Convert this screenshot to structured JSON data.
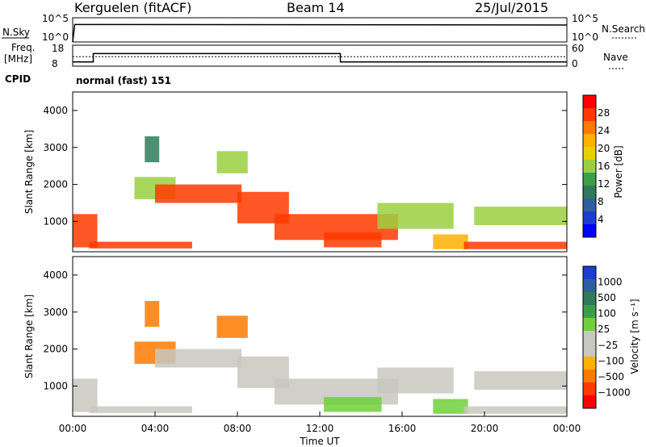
{
  "header": {
    "station": "Kerguelen (fitACF)",
    "beam": "Beam 14",
    "date": "25/Jul/2015"
  },
  "summary": {
    "nsky_label": "N.Sky",
    "nsearch_label": "N.Search",
    "freq_label_1": "Freq.",
    "freq_label_2": "[MHz]",
    "nave_label": "Nave",
    "cpid_label": "CPID",
    "cpid_value": "normal (fast) 151",
    "noise_ticks_left": [
      "10^5",
      "10^0"
    ],
    "noise_ticks_right": [
      "10^5",
      "10^0"
    ],
    "freq_ticks": [
      "18",
      "8"
    ],
    "nave_ticks": [
      "60",
      "0"
    ]
  },
  "power_panel": {
    "ylabel": "Slant Range [km]",
    "yticks": [
      "4000",
      "3000",
      "2000",
      "1000"
    ],
    "colorbar_label": "Power [dB]",
    "colorbar_ticks": [
      "28",
      "24",
      "20",
      "16",
      "12",
      "8",
      "4"
    ],
    "colorbar_colors": [
      "#ff0000",
      "#ff3a00",
      "#ff7a00",
      "#ffb000",
      "#e6d000",
      "#9ad040",
      "#3aa048",
      "#2f7a5a",
      "#2f5fa0",
      "#1e3cd0",
      "#0000ff"
    ]
  },
  "velocity_panel": {
    "ylabel": "Slant Range [km]",
    "yticks": [
      "4000",
      "3000",
      "2000",
      "1000"
    ],
    "colorbar_label": "Velocity [m s⁻¹]",
    "colorbar_ticks": [
      "1000",
      "500",
      "100",
      "25",
      "−25",
      "−100",
      "−500",
      "−1000"
    ],
    "colorbar_colors": [
      "#1e3cd0",
      "#2f5fa0",
      "#2f7a5a",
      "#3aa048",
      "#6fd03a",
      "#c8c8c0",
      "#c8c8c0",
      "#ffb000",
      "#ff7a00",
      "#ff3a00",
      "#ff0000"
    ]
  },
  "xaxis": {
    "label": "Time UT",
    "ticks": [
      "00:00",
      "04:00",
      "08:00",
      "12:00",
      "16:00",
      "20:00",
      "00:00"
    ]
  },
  "chart_data": [
    {
      "type": "line",
      "title": "N.Sky / N.Search",
      "x_hours": [
        0,
        24
      ],
      "ylim_log10": [
        0,
        5
      ],
      "series": [
        {
          "name": "N.Sky",
          "x": [
            0,
            0.1,
            24
          ],
          "values_log10": [
            0,
            3.6,
            3.5
          ]
        },
        {
          "name": "N.Search",
          "x": [
            0,
            24
          ],
          "values_log10": [
            0,
            0
          ]
        }
      ]
    },
    {
      "type": "line",
      "title": "Freq. / Nave",
      "x": [
        0,
        1,
        1,
        13,
        13,
        24
      ],
      "series": [
        {
          "name": "Freq. [MHz]",
          "values": [
            10,
            10,
            14,
            14,
            10,
            10
          ],
          "ylim": [
            8,
            18
          ]
        },
        {
          "name": "Nave",
          "values": [
            27,
            27,
            27,
            27,
            27,
            27
          ],
          "ylim": [
            0,
            60
          ]
        }
      ]
    },
    {
      "type": "heatmap",
      "title": "Power [dB]",
      "x_range_hours": [
        0,
        24
      ],
      "y_range_km": [
        180,
        4500
      ],
      "zlim": [
        0,
        30
      ],
      "echo_bands": [
        {
          "t0": 0,
          "t1": 1.2,
          "r0": 300,
          "r1": 1200,
          "peak": 26
        },
        {
          "t0": 0.8,
          "t1": 5.8,
          "r0": 270,
          "r1": 450,
          "peak": 26
        },
        {
          "t0": 3.5,
          "t1": 4.2,
          "r0": 2600,
          "r1": 3300,
          "peak": 8
        },
        {
          "t0": 3.0,
          "t1": 5.0,
          "r0": 1600,
          "r1": 2200,
          "peak": 14
        },
        {
          "t0": 4.0,
          "t1": 8.2,
          "r0": 1500,
          "r1": 2000,
          "peak": 26
        },
        {
          "t0": 8.0,
          "t1": 10.5,
          "r0": 950,
          "r1": 1800,
          "peak": 26
        },
        {
          "t0": 7.0,
          "t1": 8.5,
          "r0": 2300,
          "r1": 2900,
          "peak": 16
        },
        {
          "t0": 9.8,
          "t1": 15.8,
          "r0": 500,
          "r1": 1200,
          "peak": 26
        },
        {
          "t0": 12.2,
          "t1": 15.0,
          "r0": 300,
          "r1": 700,
          "peak": 26
        },
        {
          "t0": 14.8,
          "t1": 18.5,
          "r0": 800,
          "r1": 1500,
          "peak": 14
        },
        {
          "t0": 17.5,
          "t1": 19.2,
          "r0": 250,
          "r1": 650,
          "peak": 22
        },
        {
          "t0": 19.5,
          "t1": 24.0,
          "r0": 900,
          "r1": 1400,
          "peak": 14
        },
        {
          "t0": 19.0,
          "t1": 24.0,
          "r0": 250,
          "r1": 450,
          "peak": 26
        }
      ]
    },
    {
      "type": "heatmap",
      "title": "Velocity [m s⁻¹]",
      "x_range_hours": [
        0,
        24
      ],
      "y_range_km": [
        180,
        4500
      ],
      "zlim": [
        -1000,
        1000
      ],
      "echo_bands": [
        {
          "t0": 0,
          "t1": 1.2,
          "r0": 300,
          "r1": 1200,
          "v": 0
        },
        {
          "t0": 0.8,
          "t1": 5.8,
          "r0": 270,
          "r1": 450,
          "v": 0
        },
        {
          "t0": 3.5,
          "t1": 4.2,
          "r0": 2600,
          "r1": 3300,
          "v": -120
        },
        {
          "t0": 3.0,
          "t1": 5.0,
          "r0": 1600,
          "r1": 2200,
          "v": -100
        },
        {
          "t0": 4.0,
          "t1": 8.2,
          "r0": 1500,
          "r1": 2000,
          "v": 0
        },
        {
          "t0": 8.0,
          "t1": 10.5,
          "r0": 950,
          "r1": 1800,
          "v": 0
        },
        {
          "t0": 7.0,
          "t1": 8.5,
          "r0": 2300,
          "r1": 2900,
          "v": -150
        },
        {
          "t0": 9.8,
          "t1": 15.8,
          "r0": 500,
          "r1": 1200,
          "v": 0
        },
        {
          "t0": 12.2,
          "t1": 15.0,
          "r0": 300,
          "r1": 700,
          "v": 60
        },
        {
          "t0": 14.8,
          "t1": 18.5,
          "r0": 800,
          "r1": 1500,
          "v": 0
        },
        {
          "t0": 17.5,
          "t1": 19.2,
          "r0": 250,
          "r1": 650,
          "v": 60
        },
        {
          "t0": 19.5,
          "t1": 24.0,
          "r0": 900,
          "r1": 1400,
          "v": 0
        },
        {
          "t0": 19.0,
          "t1": 24.0,
          "r0": 250,
          "r1": 450,
          "v": 0
        }
      ]
    }
  ]
}
